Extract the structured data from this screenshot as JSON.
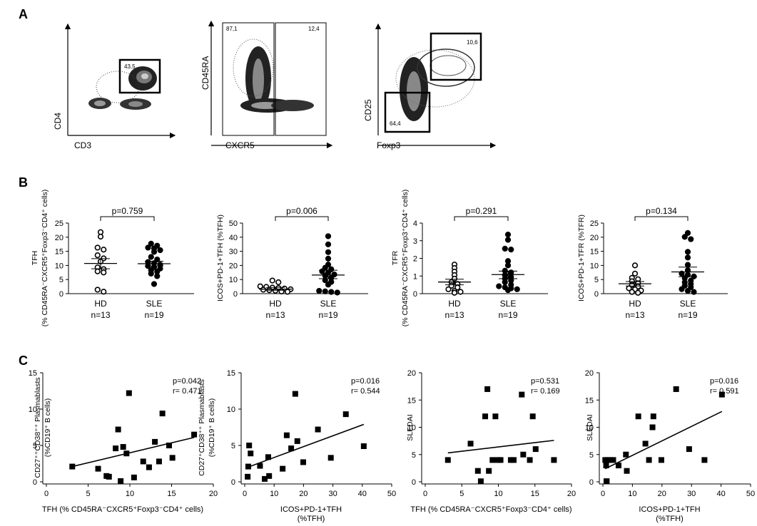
{
  "panel_labels": {
    "a": "A",
    "b": "B",
    "c": "C"
  },
  "flow_plots": [
    {
      "xlabel": "CD3",
      "ylabel": "CD4",
      "gates": [
        "43,5"
      ]
    },
    {
      "xlabel": "CXCR5",
      "ylabel": "CD45RA",
      "gates": [
        "87,1",
        "12,4"
      ]
    },
    {
      "xlabel": "Foxp3",
      "ylabel": "CD25",
      "gates": [
        "10,6",
        "64,4"
      ]
    }
  ],
  "chart_data": [
    {
      "type": "scatter",
      "panel": "B",
      "ylabel_lines": [
        "TFH",
        "(% CD45RA⁻CXCR5⁺Foxp3⁻CD4⁺ cells)"
      ],
      "ylim": [
        0,
        25
      ],
      "yticks": [
        "0",
        "5",
        "10",
        "15",
        "20",
        "25"
      ],
      "categories": [
        "HD",
        "SLE"
      ],
      "counts": [
        "n=13",
        "n=19"
      ],
      "pvalue": "p=0.759",
      "series": [
        {
          "values": [
            21.8,
            20.2,
            16.3,
            15.6,
            13.6,
            12.5,
            11.4,
            9.3,
            8.7,
            7.9,
            7.5,
            1.4,
            0.7
          ],
          "mean": 10.7,
          "sem_low": 8.8,
          "sem_high": 12.4
        },
        {
          "values": [
            17.7,
            17.0,
            16.3,
            16.0,
            15.4,
            14.8,
            13.0,
            12.1,
            11.2,
            10.8,
            10.3,
            9.8,
            9.4,
            8.9,
            8.3,
            7.8,
            7.1,
            6.2,
            3.4
          ],
          "mean": 10.6,
          "sem_low": 9.8,
          "sem_high": 11.5
        }
      ]
    },
    {
      "type": "scatter",
      "panel": "B",
      "ylabel_lines": [
        "ICOS+PD-1+TFH (%TFH)"
      ],
      "ylim": [
        0,
        50
      ],
      "yticks": [
        "0",
        "10",
        "20",
        "30",
        "40",
        "50"
      ],
      "categories": [
        "HD",
        "SLE"
      ],
      "counts": [
        "n=13",
        "n=19"
      ],
      "pvalue": "p=0.006",
      "series": [
        {
          "values": [
            9.3,
            8.1,
            5.2,
            4.8,
            4.3,
            4.0,
            3.6,
            3.1,
            2.8,
            2.5,
            2.1,
            1.5,
            1.3
          ],
          "mean": 3.2,
          "sem_low": 2.4,
          "sem_high": 4.4
        },
        {
          "values": [
            40.7,
            34.9,
            29.4,
            24.8,
            20.6,
            18.3,
            17.3,
            15.8,
            14.9,
            13.6,
            12.7,
            11.2,
            9.5,
            8.3,
            6.4,
            2.0,
            1.6,
            1.2,
            0.8
          ],
          "mean": 13.2,
          "sem_low": 10.6,
          "sem_high": 16.6
        }
      ]
    },
    {
      "type": "scatter",
      "panel": "B",
      "ylabel_lines": [
        "TFR",
        "(% CD45RA⁻CXCR5⁺Foxp3⁺CD4⁺ cells)"
      ],
      "ylim": [
        0,
        4
      ],
      "yticks": [
        "0",
        "1",
        "2",
        "3",
        "4"
      ],
      "categories": [
        "HD",
        "SLE"
      ],
      "counts": [
        "n=13",
        "n=19"
      ],
      "pvalue": "p=0.291",
      "series": [
        {
          "values": [
            1.65,
            1.45,
            1.25,
            1.05,
            0.85,
            0.65,
            0.55,
            0.45,
            0.35,
            0.25,
            0.15,
            0.1,
            0.05
          ],
          "mean": 0.66,
          "sem_low": 0.5,
          "sem_high": 0.82
        },
        {
          "values": [
            3.35,
            3.05,
            2.55,
            2.5,
            1.85,
            1.6,
            1.3,
            1.2,
            1.05,
            0.95,
            0.85,
            0.75,
            0.65,
            0.5,
            0.42,
            0.36,
            0.3,
            0.25,
            0.2
          ],
          "mean": 1.08,
          "sem_low": 0.85,
          "sem_high": 1.28
        }
      ]
    },
    {
      "type": "scatter",
      "panel": "B",
      "ylabel_lines": [
        "ICOS+PD-1+TFR (%TFR)"
      ],
      "ylim": [
        0,
        25
      ],
      "yticks": [
        "0",
        "5",
        "10",
        "15",
        "20",
        "25"
      ],
      "categories": [
        "HD",
        "SLE"
      ],
      "counts": [
        "n=13",
        "n=19"
      ],
      "pvalue": "p=0.134",
      "series": [
        {
          "values": [
            10.0,
            7.1,
            5.6,
            5.1,
            4.4,
            3.7,
            3.1,
            2.5,
            1.9,
            1.5,
            1.1,
            0.6,
            0.3
          ],
          "mean": 3.5,
          "sem_low": 2.7,
          "sem_high": 4.3
        },
        {
          "values": [
            21.5,
            20.1,
            19.3,
            14.8,
            12.8,
            10.2,
            8.3,
            7.1,
            6.7,
            6.1,
            5.5,
            4.6,
            4.0,
            3.4,
            2.8,
            2.3,
            1.6,
            1.0,
            0.6
          ],
          "mean": 7.7,
          "sem_low": 6.0,
          "sem_high": 9.4
        }
      ]
    },
    {
      "type": "scatter",
      "panel": "C",
      "ylabel_lines": [
        "CD27⁺⁺CD38⁺⁺ Plasmablasts",
        "(%CD19⁺ B cells)"
      ],
      "xlabel_lines": [
        "TFH  (% CD45RA⁻CXCR5⁺Foxp3⁻CD4⁺ cells)"
      ],
      "xlim": [
        0,
        20
      ],
      "xticks": [
        "0",
        "5",
        "10",
        "15",
        "20"
      ],
      "ylim": [
        0,
        15
      ],
      "yticks": [
        "0",
        "5",
        "10",
        "15"
      ],
      "stats": [
        "p=0.042",
        "r= 0.471"
      ],
      "x": [
        3.1,
        6.2,
        7.2,
        7.5,
        8.3,
        8.6,
        9.2,
        9.6,
        9.9,
        10.5,
        11.6,
        12.3,
        13.0,
        13.5,
        13.9,
        14.7,
        15.1,
        17.7,
        8.9
      ],
      "y": [
        2.1,
        1.8,
        0.8,
        0.7,
        4.6,
        7.2,
        4.8,
        3.9,
        12.2,
        0.6,
        2.8,
        2.0,
        5.5,
        2.8,
        9.4,
        5.0,
        3.3,
        6.5,
        0.1
      ],
      "fit": [
        [
          3.1,
          2.1
        ],
        [
          17.7,
          6.1
        ]
      ]
    },
    {
      "type": "scatter",
      "panel": "C",
      "ylabel_lines": [
        "CD27⁺CD38⁺⁺ Plasmablasts",
        "(%CD19⁺ B cells)"
      ],
      "xlabel_lines": [
        "ICOS+PD-1+TFH",
        "(%TFH)"
      ],
      "xlim": [
        0,
        50
      ],
      "xticks": [
        "0",
        "10",
        "20",
        "30",
        "40",
        "50"
      ],
      "ylim": [
        0,
        15
      ],
      "yticks": [
        "0",
        "5",
        "10",
        "15"
      ],
      "stats": [
        "p=0.016",
        "r= 0.544"
      ],
      "x": [
        1.0,
        1.5,
        2.0,
        5.2,
        6.8,
        8.0,
        8.3,
        12.9,
        14.3,
        15.8,
        17.2,
        17.9,
        19.9,
        24.9,
        29.3,
        34.4,
        40.5,
        1.2
      ],
      "y": [
        0.7,
        5.0,
        3.9,
        2.2,
        0.4,
        3.4,
        0.8,
        1.8,
        6.4,
        4.6,
        12.1,
        5.6,
        2.7,
        7.2,
        3.3,
        9.3,
        4.9,
        2.1
      ],
      "fit": [
        [
          1.0,
          2.0
        ],
        [
          40.5,
          7.9
        ]
      ]
    },
    {
      "type": "scatter",
      "panel": "C",
      "ylabel_lines": [
        "SLEDAI"
      ],
      "xlabel_lines": [
        "TFH  (% CD45RA⁻CXCR5⁺Foxp3⁻CD4⁺ cells)"
      ],
      "xlim": [
        0,
        20
      ],
      "xticks": [
        "0",
        "5",
        "10",
        "15",
        "20"
      ],
      "ylim": [
        0,
        20
      ],
      "yticks": [
        "0",
        "5",
        "10",
        "15",
        "20"
      ],
      "stats": [
        "p=0.531",
        "r= 0.169"
      ],
      "x": [
        3.1,
        6.2,
        7.2,
        7.6,
        8.2,
        8.5,
        8.7,
        9.2,
        9.6,
        9.9,
        10.3,
        11.7,
        12.1,
        13.2,
        13.4,
        14.3,
        14.7,
        15.1,
        17.6
      ],
      "y": [
        4.0,
        7.0,
        2.0,
        0.1,
        12.0,
        17.0,
        2.0,
        4.0,
        12.0,
        4.0,
        4.0,
        4.0,
        4.0,
        16.0,
        5.0,
        4.0,
        12.0,
        6.0,
        4.0
      ],
      "fit": [
        [
          3.1,
          5.3
        ],
        [
          17.6,
          7.6
        ]
      ]
    },
    {
      "type": "scatter",
      "panel": "C",
      "ylabel_lines": [
        "SLEDAI"
      ],
      "xlabel_lines": [
        "ICOS+PD-1+TFH",
        "(%TFH)"
      ],
      "xlim": [
        0,
        50
      ],
      "xticks": [
        "0",
        "10",
        "20",
        "30",
        "40",
        "50"
      ],
      "ylim": [
        0,
        20
      ],
      "yticks": [
        "0",
        "5",
        "10",
        "15",
        "20"
      ],
      "stats": [
        "p=0.016",
        "r= 0.591"
      ],
      "x": [
        0.8,
        1.1,
        1.3,
        1.7,
        2.5,
        3.5,
        5.3,
        7.8,
        8.1,
        12.0,
        14.4,
        15.6,
        16.8,
        17.1,
        19.8,
        24.8,
        29.2,
        34.4,
        40.3,
        1.2
      ],
      "y": [
        4.0,
        3.0,
        0.1,
        4.0,
        4.0,
        4.0,
        3.0,
        5.0,
        2.0,
        12.0,
        7.0,
        4.0,
        10.0,
        12.0,
        4.0,
        17.0,
        6.0,
        4.0,
        16.0,
        0.1
      ],
      "fit": [
        [
          0.8,
          2.4
        ],
        [
          40.3,
          12.9
        ]
      ]
    }
  ]
}
